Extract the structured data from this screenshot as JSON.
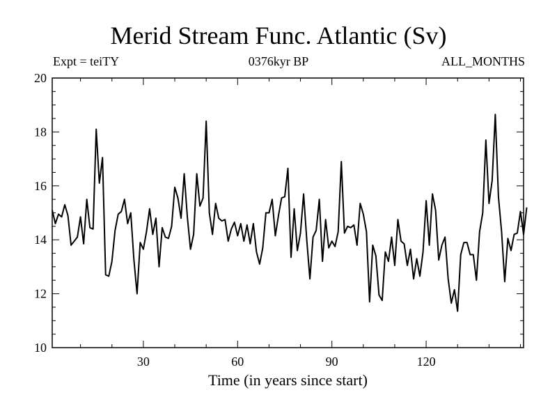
{
  "chart_data": {
    "type": "line",
    "title": "Merid Stream Func. Atlantic (Sv)",
    "left_label": "Expt = teiTY",
    "center_label": "0376kyr BP",
    "right_label": "ALL_MONTHS",
    "xlabel": "Time (in years since start)",
    "ylabel": "",
    "xlim": [
      1,
      151
    ],
    "ylim": [
      10,
      20
    ],
    "x_ticks": [
      30,
      60,
      90,
      120
    ],
    "y_ticks": [
      10,
      12,
      14,
      16,
      18,
      20
    ],
    "series": [
      {
        "name": "Merid Stream Func. Atlantic",
        "x_start": 1,
        "x_step": 1,
        "values": [
          15.1,
          14.6,
          14.95,
          14.85,
          15.3,
          14.9,
          13.8,
          13.95,
          14.1,
          14.85,
          13.85,
          15.5,
          14.45,
          14.4,
          18.1,
          16.1,
          17.05,
          12.7,
          12.65,
          13.2,
          14.35,
          14.95,
          15.05,
          15.5,
          14.6,
          15.0,
          13.25,
          12.0,
          13.9,
          13.65,
          14.3,
          15.15,
          14.2,
          14.8,
          13.0,
          14.45,
          14.1,
          14.05,
          14.5,
          15.95,
          15.55,
          14.8,
          16.45,
          14.85,
          13.65,
          14.2,
          16.45,
          15.25,
          15.55,
          18.4,
          15.0,
          14.2,
          15.35,
          14.8,
          14.7,
          14.75,
          13.95,
          14.4,
          14.65,
          14.15,
          14.6,
          13.95,
          14.55,
          13.85,
          14.6,
          13.55,
          13.1,
          13.7,
          15.0,
          15.0,
          15.5,
          14.15,
          14.9,
          15.55,
          15.6,
          16.65,
          13.35,
          15.15,
          13.6,
          14.25,
          15.7,
          14.0,
          12.55,
          14.1,
          14.35,
          15.5,
          13.2,
          14.75,
          13.7,
          13.95,
          13.75,
          14.3,
          16.9,
          14.25,
          14.5,
          14.45,
          14.55,
          13.8,
          15.35,
          14.95,
          14.3,
          11.7,
          13.8,
          13.4,
          11.95,
          11.75,
          13.55,
          13.2,
          14.1,
          13.05,
          14.75,
          13.95,
          13.85,
          13.05,
          13.65,
          12.55,
          13.3,
          12.65,
          13.55,
          15.45,
          13.8,
          15.7,
          15.1,
          13.25,
          13.8,
          14.1,
          12.55,
          11.65,
          12.15,
          11.35,
          13.45,
          13.9,
          13.9,
          13.45,
          13.45,
          12.5,
          14.3,
          15.0,
          17.7,
          15.35,
          16.2,
          18.65,
          15.6,
          14.3,
          12.45,
          14.05,
          13.6,
          14.2,
          14.25,
          15.05,
          14.2,
          15.2
        ]
      }
    ]
  }
}
